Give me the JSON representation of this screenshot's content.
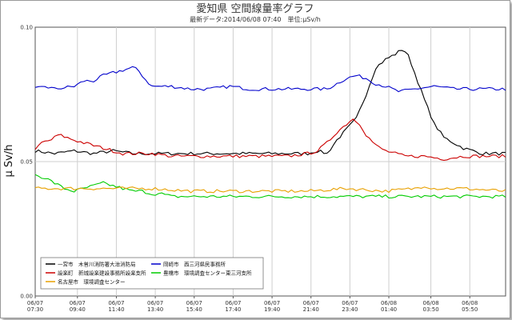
{
  "chart_data": {
    "type": "line",
    "title": "愛知県 空間線量率グラフ",
    "subtitle": "最新データ:2014/06/08 07:40　単位:μSv/h",
    "ylabel": "μ Sv/h",
    "xlabel": "",
    "ylim": [
      0,
      0.1
    ],
    "yticks": [
      "0.00",
      "0.05",
      "0.10"
    ],
    "grid": true,
    "legend_position": "bottom-left",
    "x_tick_labels": [
      [
        "06/07",
        "07:30"
      ],
      [
        "06/07",
        "09:40"
      ],
      [
        "06/07",
        "11:40"
      ],
      [
        "06/07",
        "13:40"
      ],
      [
        "06/07",
        "15:40"
      ],
      [
        "06/07",
        "17:40"
      ],
      [
        "06/07",
        "19:40"
      ],
      [
        "06/07",
        "21:40"
      ],
      [
        "06/07",
        "23:40"
      ],
      [
        "06/08",
        "01:40"
      ],
      [
        "06/08",
        "03:50"
      ],
      [
        "06/08",
        "05:50"
      ]
    ],
    "x_hours": [
      0,
      2.17,
      4.17,
      6.17,
      8.17,
      10.17,
      12.17,
      14.17,
      16.17,
      18.17,
      20.33,
      22.33
    ],
    "x_range_hours": [
      0,
      24.17
    ],
    "series": [
      {
        "name": "一宮市　木曽川消防署大治消防局",
        "color": "#000000",
        "points": [
          [
            0,
            0.054
          ],
          [
            1,
            0.053
          ],
          [
            2,
            0.054
          ],
          [
            3,
            0.053
          ],
          [
            4,
            0.054
          ],
          [
            5,
            0.053
          ],
          [
            6,
            0.053
          ],
          [
            7,
            0.053
          ],
          [
            8,
            0.053
          ],
          [
            9,
            0.053
          ],
          [
            10,
            0.053
          ],
          [
            11,
            0.053
          ],
          [
            12,
            0.053
          ],
          [
            13,
            0.053
          ],
          [
            14,
            0.053
          ],
          [
            14.5,
            0.054
          ],
          [
            15,
            0.053
          ],
          [
            15.5,
            0.058
          ],
          [
            16,
            0.062
          ],
          [
            16.5,
            0.066
          ],
          [
            17,
            0.075
          ],
          [
            17.5,
            0.085
          ],
          [
            18,
            0.088
          ],
          [
            18.5,
            0.09
          ],
          [
            18.9,
            0.092
          ],
          [
            19.2,
            0.089
          ],
          [
            19.5,
            0.083
          ],
          [
            20,
            0.073
          ],
          [
            20.5,
            0.064
          ],
          [
            21,
            0.059
          ],
          [
            21.5,
            0.057
          ],
          [
            22,
            0.055
          ],
          [
            23,
            0.053
          ],
          [
            24.2,
            0.053
          ]
        ]
      },
      {
        "name": "岡崎市　西三河県民事務所",
        "color": "#0000cc",
        "points": [
          [
            0,
            0.077
          ],
          [
            0.5,
            0.078
          ],
          [
            1,
            0.077
          ],
          [
            2,
            0.078
          ],
          [
            2.5,
            0.08
          ],
          [
            3,
            0.08
          ],
          [
            3.5,
            0.082
          ],
          [
            4,
            0.083
          ],
          [
            4.5,
            0.084
          ],
          [
            5,
            0.085
          ],
          [
            5.3,
            0.084
          ],
          [
            5.6,
            0.081
          ],
          [
            6,
            0.078
          ],
          [
            7,
            0.078
          ],
          [
            8,
            0.077
          ],
          [
            9,
            0.077
          ],
          [
            10,
            0.078
          ],
          [
            11,
            0.077
          ],
          [
            12,
            0.077
          ],
          [
            13,
            0.077
          ],
          [
            14,
            0.077
          ],
          [
            15,
            0.077
          ],
          [
            15.5,
            0.079
          ],
          [
            16,
            0.081
          ],
          [
            16.5,
            0.082
          ],
          [
            17,
            0.081
          ],
          [
            17.5,
            0.079
          ],
          [
            18,
            0.078
          ],
          [
            18.7,
            0.076
          ],
          [
            19.5,
            0.077
          ],
          [
            20.5,
            0.078
          ],
          [
            21.5,
            0.077
          ],
          [
            22.5,
            0.077
          ],
          [
            24.2,
            0.077
          ]
        ]
      },
      {
        "name": "設楽町　新城設楽建設事務所設楽支所",
        "color": "#cc0000",
        "points": [
          [
            0,
            0.054
          ],
          [
            0.3,
            0.057
          ],
          [
            0.8,
            0.058
          ],
          [
            1.2,
            0.06
          ],
          [
            1.6,
            0.059
          ],
          [
            2,
            0.058
          ],
          [
            2.5,
            0.057
          ],
          [
            3,
            0.056
          ],
          [
            3.5,
            0.055
          ],
          [
            4,
            0.054
          ],
          [
            4.5,
            0.053
          ],
          [
            5,
            0.053
          ],
          [
            6,
            0.053
          ],
          [
            7,
            0.052
          ],
          [
            8,
            0.052
          ],
          [
            9,
            0.052
          ],
          [
            10,
            0.052
          ],
          [
            11,
            0.052
          ],
          [
            12,
            0.052
          ],
          [
            13,
            0.052
          ],
          [
            14,
            0.053
          ],
          [
            14.5,
            0.054
          ],
          [
            15,
            0.057
          ],
          [
            15.5,
            0.061
          ],
          [
            16,
            0.064
          ],
          [
            16.3,
            0.066
          ],
          [
            16.7,
            0.064
          ],
          [
            17,
            0.06
          ],
          [
            17.5,
            0.056
          ],
          [
            18,
            0.054
          ],
          [
            18.5,
            0.053
          ],
          [
            19,
            0.052
          ],
          [
            20,
            0.052
          ],
          [
            21,
            0.051
          ],
          [
            22,
            0.052
          ],
          [
            23,
            0.052
          ],
          [
            24.2,
            0.052
          ]
        ]
      },
      {
        "name": "豊橋市　環境調査センター東三河支所",
        "color": "#00cc00",
        "points": [
          [
            0,
            0.045
          ],
          [
            0.5,
            0.044
          ],
          [
            1,
            0.042
          ],
          [
            1.5,
            0.04
          ],
          [
            2,
            0.039
          ],
          [
            2.5,
            0.04
          ],
          [
            3,
            0.041
          ],
          [
            3.5,
            0.042
          ],
          [
            4,
            0.041
          ],
          [
            4.5,
            0.04
          ],
          [
            5,
            0.039
          ],
          [
            5.5,
            0.039
          ],
          [
            6,
            0.038
          ],
          [
            6.5,
            0.038
          ],
          [
            7,
            0.037
          ],
          [
            8,
            0.037
          ],
          [
            10,
            0.037
          ],
          [
            12,
            0.037
          ],
          [
            14,
            0.037
          ],
          [
            16,
            0.037
          ],
          [
            18,
            0.037
          ],
          [
            20,
            0.037
          ],
          [
            22,
            0.037
          ],
          [
            24.2,
            0.037
          ]
        ]
      },
      {
        "name": "名古屋市　環境調査センター",
        "color": "#e8a000",
        "points": [
          [
            0,
            0.04
          ],
          [
            2,
            0.04
          ],
          [
            4,
            0.04
          ],
          [
            6,
            0.04
          ],
          [
            8,
            0.039
          ],
          [
            10,
            0.039
          ],
          [
            12,
            0.039
          ],
          [
            14,
            0.039
          ],
          [
            16,
            0.04
          ],
          [
            18,
            0.039
          ],
          [
            19.5,
            0.04
          ],
          [
            20,
            0.041
          ],
          [
            20.5,
            0.04
          ],
          [
            22,
            0.04
          ],
          [
            24.2,
            0.039
          ]
        ]
      }
    ]
  }
}
